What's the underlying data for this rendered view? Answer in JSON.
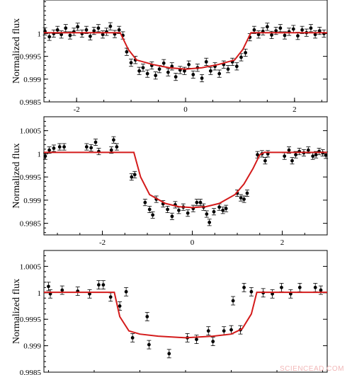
{
  "chart_data": [
    {
      "type": "scatter",
      "ylabel": "Normalized flux",
      "xlim": [
        -2.6,
        2.6
      ],
      "ylim": [
        0.9985,
        1.0008
      ],
      "xticks": [
        -2,
        0,
        2
      ],
      "xtick_labels": [
        "-2",
        "0",
        "2"
      ],
      "yticks": [
        0.9985,
        0.999,
        0.9995,
        1.0
      ],
      "ytick_labels": [
        "0.9985",
        "0.999",
        "0.9995",
        "1"
      ],
      "model": {
        "x": [
          -2.6,
          -1.2,
          -1.05,
          -0.9,
          -0.6,
          -0.3,
          0.0,
          0.3,
          0.6,
          0.9,
          1.05,
          1.2,
          2.6
        ],
        "y": [
          1.00002,
          1.00002,
          0.99965,
          0.99942,
          0.99932,
          0.99925,
          0.99922,
          0.99925,
          0.99932,
          0.99942,
          0.99965,
          1.00002,
          1.00002
        ]
      },
      "points": [
        {
          "x": -2.58,
          "y": 1.00005,
          "err": 8e-05
        },
        {
          "x": -2.5,
          "y": 0.99993,
          "err": 8e-05
        },
        {
          "x": -2.42,
          "y": 1.0,
          "err": 8e-05
        },
        {
          "x": -2.35,
          "y": 1.00008,
          "err": 8e-05
        },
        {
          "x": -2.28,
          "y": 0.99998,
          "err": 8e-05
        },
        {
          "x": -2.2,
          "y": 1.00012,
          "err": 8e-05
        },
        {
          "x": -2.12,
          "y": 0.99996,
          "err": 8e-05
        },
        {
          "x": -2.05,
          "y": 1.00004,
          "err": 8e-05
        },
        {
          "x": -1.98,
          "y": 1.00015,
          "err": 8e-05
        },
        {
          "x": -1.9,
          "y": 1.0,
          "err": 8e-05
        },
        {
          "x": -1.82,
          "y": 1.00008,
          "err": 8e-05
        },
        {
          "x": -1.75,
          "y": 0.99994,
          "err": 8e-05
        },
        {
          "x": -1.68,
          "y": 1.00006,
          "err": 8e-05
        },
        {
          "x": -1.6,
          "y": 1.00012,
          "err": 8e-05
        },
        {
          "x": -1.52,
          "y": 0.99998,
          "err": 8e-05
        },
        {
          "x": -1.45,
          "y": 1.00004,
          "err": 8e-05
        },
        {
          "x": -1.38,
          "y": 1.00016,
          "err": 8e-05
        },
        {
          "x": -1.3,
          "y": 0.99999,
          "err": 8e-05
        },
        {
          "x": -1.22,
          "y": 1.00008,
          "err": 8e-05
        },
        {
          "x": -1.15,
          "y": 0.99996,
          "err": 8e-05
        },
        {
          "x": -1.08,
          "y": 0.9996,
          "err": 8e-05
        },
        {
          "x": -1.0,
          "y": 0.99936,
          "err": 8e-05
        },
        {
          "x": -0.92,
          "y": 0.99942,
          "err": 8e-05
        },
        {
          "x": -0.85,
          "y": 0.99918,
          "err": 8e-05
        },
        {
          "x": -0.78,
          "y": 0.99925,
          "err": 8e-05
        },
        {
          "x": -0.7,
          "y": 0.99912,
          "err": 8e-05
        },
        {
          "x": -0.62,
          "y": 0.9993,
          "err": 8e-05
        },
        {
          "x": -0.55,
          "y": 0.99908,
          "err": 8e-05
        },
        {
          "x": -0.48,
          "y": 0.99922,
          "err": 8e-05
        },
        {
          "x": -0.4,
          "y": 0.99935,
          "err": 8e-05
        },
        {
          "x": -0.32,
          "y": 0.99915,
          "err": 8e-05
        },
        {
          "x": -0.25,
          "y": 0.99928,
          "err": 8e-05
        },
        {
          "x": -0.18,
          "y": 0.99905,
          "err": 8e-05
        },
        {
          "x": -0.1,
          "y": 0.9992,
          "err": 8e-05
        },
        {
          "x": -0.02,
          "y": 0.99918,
          "err": 8e-05
        },
        {
          "x": 0.06,
          "y": 0.99932,
          "err": 8e-05
        },
        {
          "x": 0.14,
          "y": 0.9991,
          "err": 8e-05
        },
        {
          "x": 0.22,
          "y": 0.99925,
          "err": 8e-05
        },
        {
          "x": 0.3,
          "y": 0.99902,
          "err": 8e-05
        },
        {
          "x": 0.38,
          "y": 0.99938,
          "err": 8e-05
        },
        {
          "x": 0.46,
          "y": 0.99918,
          "err": 8e-05
        },
        {
          "x": 0.54,
          "y": 0.99928,
          "err": 8e-05
        },
        {
          "x": 0.62,
          "y": 0.99912,
          "err": 8e-05
        },
        {
          "x": 0.7,
          "y": 0.99932,
          "err": 8e-05
        },
        {
          "x": 0.78,
          "y": 0.99922,
          "err": 8e-05
        },
        {
          "x": 0.86,
          "y": 0.99938,
          "err": 8e-05
        },
        {
          "x": 0.94,
          "y": 0.99928,
          "err": 8e-05
        },
        {
          "x": 1.02,
          "y": 0.99948,
          "err": 8e-05
        },
        {
          "x": 1.1,
          "y": 0.99958,
          "err": 8e-05
        },
        {
          "x": 1.18,
          "y": 0.99992,
          "err": 8e-05
        },
        {
          "x": 1.26,
          "y": 1.00008,
          "err": 8e-05
        },
        {
          "x": 1.34,
          "y": 0.99998,
          "err": 8e-05
        },
        {
          "x": 1.42,
          "y": 1.00005,
          "err": 8e-05
        },
        {
          "x": 1.5,
          "y": 1.00015,
          "err": 8e-05
        },
        {
          "x": 1.58,
          "y": 0.99997,
          "err": 8e-05
        },
        {
          "x": 1.66,
          "y": 1.00006,
          "err": 8e-05
        },
        {
          "x": 1.74,
          "y": 1.00012,
          "err": 8e-05
        },
        {
          "x": 1.82,
          "y": 0.99996,
          "err": 8e-05
        },
        {
          "x": 1.9,
          "y": 1.00004,
          "err": 8e-05
        },
        {
          "x": 1.98,
          "y": 1.0001,
          "err": 8e-05
        },
        {
          "x": 2.06,
          "y": 0.99995,
          "err": 8e-05
        },
        {
          "x": 2.14,
          "y": 1.00008,
          "err": 8e-05
        },
        {
          "x": 2.22,
          "y": 1.00002,
          "err": 8e-05
        },
        {
          "x": 2.3,
          "y": 1.00012,
          "err": 8e-05
        },
        {
          "x": 2.38,
          "y": 0.99998,
          "err": 8e-05
        },
        {
          "x": 2.46,
          "y": 1.00006,
          "err": 8e-05
        },
        {
          "x": 2.54,
          "y": 1.0,
          "err": 8e-05
        }
      ]
    },
    {
      "type": "scatter",
      "ylabel": "Normalized flux",
      "xlim": [
        -3.3,
        3.0
      ],
      "ylim": [
        0.99825,
        1.0008
      ],
      "xticks": [
        -2,
        0,
        2
      ],
      "xtick_labels": [
        "-2",
        "0",
        "2"
      ],
      "yticks": [
        0.9985,
        0.999,
        0.9995,
        1.0,
        1.0005
      ],
      "ytick_labels": [
        "0.9985",
        "0.999",
        "0.9995",
        "1",
        "1.0005"
      ],
      "model": {
        "x": [
          -3.3,
          -1.3,
          -1.15,
          -0.95,
          -0.6,
          -0.3,
          0.0,
          0.3,
          0.6,
          0.95,
          1.15,
          1.35,
          1.5,
          1.6,
          3.0
        ],
        "y": [
          1.00003,
          1.00003,
          0.9995,
          0.99912,
          0.99893,
          0.99886,
          0.99884,
          0.99886,
          0.99893,
          0.99912,
          0.99935,
          0.99968,
          0.99998,
          1.00003,
          1.00003
        ]
      },
      "points": [
        {
          "x": -3.27,
          "y": 0.99995,
          "err": 7e-05
        },
        {
          "x": -3.18,
          "y": 1.00008,
          "err": 7e-05
        },
        {
          "x": -3.08,
          "y": 1.00012,
          "err": 7e-05
        },
        {
          "x": -2.95,
          "y": 1.00015,
          "err": 7e-05
        },
        {
          "x": -2.85,
          "y": 1.00015,
          "err": 7e-05
        },
        {
          "x": -2.35,
          "y": 1.00015,
          "err": 7e-05
        },
        {
          "x": -2.25,
          "y": 1.00013,
          "err": 7e-05
        },
        {
          "x": -2.15,
          "y": 1.00025,
          "err": 7e-05
        },
        {
          "x": -2.08,
          "y": 1.00005,
          "err": 7e-05
        },
        {
          "x": -1.8,
          "y": 1.00008,
          "err": 7e-05
        },
        {
          "x": -1.75,
          "y": 1.0003,
          "err": 7e-05
        },
        {
          "x": -1.68,
          "y": 1.00015,
          "err": 7e-05
        },
        {
          "x": -1.35,
          "y": 0.9995,
          "err": 7e-05
        },
        {
          "x": -1.28,
          "y": 0.99955,
          "err": 7e-05
        },
        {
          "x": -1.05,
          "y": 0.99895,
          "err": 7e-05
        },
        {
          "x": -0.95,
          "y": 0.9988,
          "err": 7e-05
        },
        {
          "x": -0.88,
          "y": 0.99868,
          "err": 7e-05
        },
        {
          "x": -0.8,
          "y": 0.99902,
          "err": 7e-05
        },
        {
          "x": -0.65,
          "y": 0.99892,
          "err": 7e-05
        },
        {
          "x": -0.55,
          "y": 0.9988,
          "err": 7e-05
        },
        {
          "x": -0.45,
          "y": 0.99865,
          "err": 7e-05
        },
        {
          "x": -0.38,
          "y": 0.9989,
          "err": 7e-05
        },
        {
          "x": -0.3,
          "y": 0.99878,
          "err": 7e-05
        },
        {
          "x": -0.2,
          "y": 0.99885,
          "err": 7e-05
        },
        {
          "x": -0.1,
          "y": 0.99872,
          "err": 7e-05
        },
        {
          "x": 0.02,
          "y": 0.99882,
          "err": 7e-05
        },
        {
          "x": 0.1,
          "y": 0.99895,
          "err": 7e-05
        },
        {
          "x": 0.18,
          "y": 0.99895,
          "err": 7e-05
        },
        {
          "x": 0.25,
          "y": 0.99885,
          "err": 7e-05
        },
        {
          "x": 0.32,
          "y": 0.9987,
          "err": 7e-05
        },
        {
          "x": 0.38,
          "y": 0.99852,
          "err": 7e-05
        },
        {
          "x": 0.48,
          "y": 0.99875,
          "err": 7e-05
        },
        {
          "x": 0.6,
          "y": 0.99885,
          "err": 7e-05
        },
        {
          "x": 0.68,
          "y": 0.99878,
          "err": 7e-05
        },
        {
          "x": 0.75,
          "y": 0.99882,
          "err": 7e-05
        },
        {
          "x": 1.0,
          "y": 0.99915,
          "err": 7e-05
        },
        {
          "x": 1.08,
          "y": 0.99905,
          "err": 7e-05
        },
        {
          "x": 1.15,
          "y": 0.99902,
          "err": 7e-05
        },
        {
          "x": 1.22,
          "y": 0.99915,
          "err": 7e-05
        },
        {
          "x": 1.45,
          "y": 0.99998,
          "err": 7e-05
        },
        {
          "x": 1.55,
          "y": 1.0,
          "err": 7e-05
        },
        {
          "x": 1.62,
          "y": 0.99985,
          "err": 7e-05
        },
        {
          "x": 1.68,
          "y": 1.0,
          "err": 7e-05
        },
        {
          "x": 2.05,
          "y": 0.99995,
          "err": 7e-05
        },
        {
          "x": 2.15,
          "y": 1.00008,
          "err": 7e-05
        },
        {
          "x": 2.22,
          "y": 0.99985,
          "err": 7e-05
        },
        {
          "x": 2.3,
          "y": 0.99998,
          "err": 7e-05
        },
        {
          "x": 2.38,
          "y": 1.00005,
          "err": 7e-05
        },
        {
          "x": 2.48,
          "y": 1.00002,
          "err": 7e-05
        },
        {
          "x": 2.58,
          "y": 1.00008,
          "err": 7e-05
        },
        {
          "x": 2.68,
          "y": 0.99995,
          "err": 7e-05
        },
        {
          "x": 2.75,
          "y": 0.99998,
          "err": 7e-05
        },
        {
          "x": 2.82,
          "y": 1.00005,
          "err": 7e-05
        },
        {
          "x": 2.9,
          "y": 1.00002,
          "err": 7e-05
        },
        {
          "x": 2.97,
          "y": 0.99997,
          "err": 7e-05
        }
      ]
    },
    {
      "type": "scatter",
      "ylabel": "Normalized flux",
      "xlim": [
        -1.55,
        1.55
      ],
      "ylim": [
        0.9985,
        1.0008
      ],
      "xticks": [],
      "xtick_labels": [],
      "yticks": [
        0.9985,
        0.999,
        0.9995,
        1.0,
        1.0005
      ],
      "ytick_labels": [
        "0.9985",
        "0.999",
        "0.9995",
        "1",
        "1.0005"
      ],
      "model": {
        "x": [
          -1.55,
          -0.78,
          -0.72,
          -0.62,
          -0.5,
          -0.3,
          0.0,
          0.3,
          0.5,
          0.62,
          0.72,
          0.78,
          1.55
        ],
        "y": [
          1.00001,
          1.00001,
          0.99955,
          0.99928,
          0.99922,
          0.99918,
          0.99915,
          0.99918,
          0.99922,
          0.99932,
          0.9996,
          1.00001,
          1.00001
        ]
      },
      "points": [
        {
          "x": -1.5,
          "y": 1.00012,
          "err": 8e-05
        },
        {
          "x": -1.48,
          "y": 0.99998,
          "err": 8e-05
        },
        {
          "x": -1.35,
          "y": 1.00005,
          "err": 8e-05
        },
        {
          "x": -1.18,
          "y": 1.00003,
          "err": 8e-05
        },
        {
          "x": -1.05,
          "y": 0.99998,
          "err": 8e-05
        },
        {
          "x": -0.95,
          "y": 1.00015,
          "err": 8e-05
        },
        {
          "x": -0.9,
          "y": 1.00015,
          "err": 8e-05
        },
        {
          "x": -0.82,
          "y": 0.99992,
          "err": 8e-05
        },
        {
          "x": -0.72,
          "y": 0.99975,
          "err": 8e-05
        },
        {
          "x": -0.65,
          "y": 1.00002,
          "err": 8e-05
        },
        {
          "x": -0.58,
          "y": 0.99915,
          "err": 8e-05
        },
        {
          "x": -0.42,
          "y": 0.99955,
          "err": 8e-05
        },
        {
          "x": -0.4,
          "y": 0.99902,
          "err": 8e-05
        },
        {
          "x": -0.18,
          "y": 0.99885,
          "err": 8e-05
        },
        {
          "x": 0.02,
          "y": 0.99915,
          "err": 8e-05
        },
        {
          "x": 0.12,
          "y": 0.99912,
          "err": 8e-05
        },
        {
          "x": 0.25,
          "y": 0.99928,
          "err": 8e-05
        },
        {
          "x": 0.3,
          "y": 0.99908,
          "err": 8e-05
        },
        {
          "x": 0.42,
          "y": 0.99928,
          "err": 8e-05
        },
        {
          "x": 0.5,
          "y": 0.9993,
          "err": 8e-05
        },
        {
          "x": 0.52,
          "y": 0.99985,
          "err": 8e-05
        },
        {
          "x": 0.6,
          "y": 0.9993,
          "err": 8e-05
        },
        {
          "x": 0.64,
          "y": 1.0001,
          "err": 8e-05
        },
        {
          "x": 0.72,
          "y": 1.00002,
          "err": 8e-05
        },
        {
          "x": 0.85,
          "y": 1.0,
          "err": 8e-05
        },
        {
          "x": 0.95,
          "y": 0.99998,
          "err": 8e-05
        },
        {
          "x": 1.05,
          "y": 1.0001,
          "err": 8e-05
        },
        {
          "x": 1.15,
          "y": 0.99998,
          "err": 8e-05
        },
        {
          "x": 1.25,
          "y": 1.0001,
          "err": 8e-05
        },
        {
          "x": 1.42,
          "y": 1.0001,
          "err": 8e-05
        },
        {
          "x": 1.48,
          "y": 1.00005,
          "err": 8e-05
        }
      ]
    }
  ],
  "colors": {
    "model": "#d41b1b",
    "points": "#000000",
    "watermark": "#f2b8b8"
  },
  "watermark": "SCIENCEAD.COM"
}
